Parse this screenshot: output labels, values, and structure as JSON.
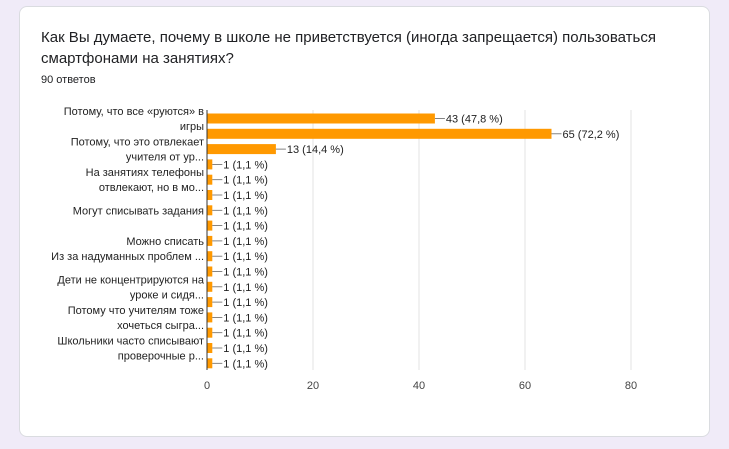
{
  "question": {
    "title": "Как Вы думаете, почему в школе не приветствуется (иногда запрещается) пользоваться смартфонами на занятиях?",
    "responses_count": "90 ответов"
  },
  "chart_data": {
    "type": "bar",
    "orientation": "horizontal",
    "bar_color": "#ff9900",
    "grid": true,
    "xlim": [
      0,
      80
    ],
    "x_ticks": [
      "0",
      "20",
      "40",
      "60",
      "80"
    ],
    "bars": [
      {
        "value": 43,
        "label": "43 (47,8 %)"
      },
      {
        "value": 65,
        "label": "65 (72,2 %)"
      },
      {
        "value": 13,
        "label": "13 (14,4 %)"
      },
      {
        "value": 1,
        "label": "1 (1,1 %)"
      },
      {
        "value": 1,
        "label": "1 (1,1 %)"
      },
      {
        "value": 1,
        "label": "1 (1,1 %)"
      },
      {
        "value": 1,
        "label": "1 (1,1 %)"
      },
      {
        "value": 1,
        "label": "1 (1,1 %)"
      },
      {
        "value": 1,
        "label": "1 (1,1 %)"
      },
      {
        "value": 1,
        "label": "1 (1,1 %)"
      },
      {
        "value": 1,
        "label": "1 (1,1 %)"
      },
      {
        "value": 1,
        "label": "1 (1,1 %)"
      },
      {
        "value": 1,
        "label": "1 (1,1 %)"
      },
      {
        "value": 1,
        "label": "1 (1,1 %)"
      },
      {
        "value": 1,
        "label": "1 (1,1 %)"
      },
      {
        "value": 1,
        "label": "1 (1,1 %)"
      },
      {
        "value": 1,
        "label": "1 (1,1 %)"
      }
    ],
    "category_labels": [
      {
        "bar_index": 0,
        "lines": [
          "Потому, что все «руются» в",
          "игры"
        ]
      },
      {
        "bar_index": 2,
        "lines": [
          "Потому, что это отвлекает",
          "учителя от ур..."
        ]
      },
      {
        "bar_index": 4,
        "lines": [
          "На занятиях телефоны",
          "отвлекают, но в мо..."
        ]
      },
      {
        "bar_index": 6,
        "lines": [
          "Могут списывать задания"
        ]
      },
      {
        "bar_index": 8,
        "lines": [
          "Можно списать"
        ]
      },
      {
        "bar_index": 9,
        "lines": [
          "Из за надуманных проблем ..."
        ]
      },
      {
        "bar_index": 11,
        "lines": [
          "Дети не концентрируются на",
          "уроке и сидя..."
        ]
      },
      {
        "bar_index": 13,
        "lines": [
          "Потому что учителям тоже",
          "хочеться сыгра..."
        ]
      },
      {
        "bar_index": 15,
        "lines": [
          "Школьники часто списывают",
          "проверочные р..."
        ]
      }
    ]
  }
}
